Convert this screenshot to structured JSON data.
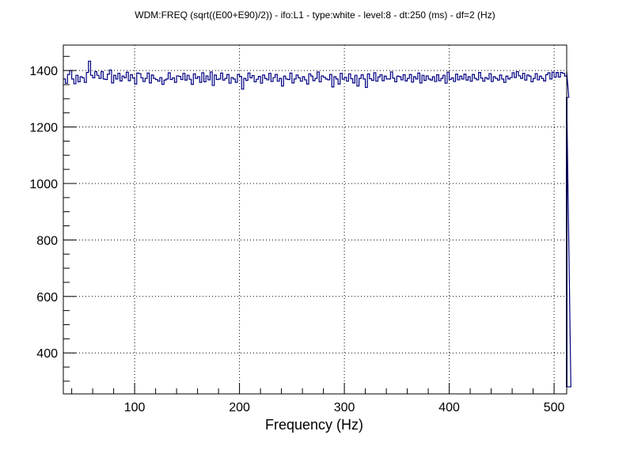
{
  "chart_data": {
    "type": "line",
    "title": "WDM:FREQ (sqrt((E00+E90)/2)) - ifo:L1 - type:white - level:8 - dt:250 (ms) - df=2 (Hz)",
    "xlabel": "Frequency (Hz)",
    "ylabel": "",
    "xlim": [
      32,
      512
    ],
    "ylim": [
      255,
      1490
    ],
    "x_ticks": [
      100,
      200,
      300,
      400,
      500
    ],
    "y_ticks": [
      400,
      600,
      800,
      1000,
      1200,
      1400
    ],
    "grid": true,
    "step": 2,
    "x_start": 32,
    "series": [
      {
        "style": "histogram-step",
        "color": "#000080",
        "values": [
          1370,
          1355,
          1386,
          1400,
          1370,
          1353,
          1383,
          1360,
          1378,
          1374,
          1358,
          1393,
          1433,
          1383,
          1374,
          1396,
          1383,
          1372,
          1396,
          1370,
          1368,
          1387,
          1402,
          1356,
          1383,
          1370,
          1390,
          1363,
          1380,
          1374,
          1394,
          1364,
          1385,
          1373,
          1352,
          1391,
          1389,
          1374,
          1361,
          1372,
          1391,
          1356,
          1384,
          1372,
          1368,
          1362,
          1375,
          1351,
          1366,
          1370,
          1392,
          1368,
          1374,
          1358,
          1381,
          1379,
          1368,
          1390,
          1366,
          1383,
          1369,
          1351,
          1388,
          1372,
          1378,
          1358,
          1392,
          1360,
          1381,
          1367,
          1395,
          1347,
          1384,
          1368,
          1370,
          1391,
          1366,
          1372,
          1386,
          1355,
          1375,
          1370,
          1358,
          1386,
          1379,
          1334,
          1372,
          1365,
          1391,
          1374,
          1382,
          1360,
          1369,
          1379,
          1355,
          1384,
          1372,
          1367,
          1390,
          1361,
          1375,
          1386,
          1362,
          1372,
          1345,
          1380,
          1370,
          1368,
          1391,
          1356,
          1370,
          1384,
          1374,
          1362,
          1378,
          1367,
          1352,
          1388,
          1380,
          1364,
          1372,
          1395,
          1360,
          1381,
          1376,
          1370,
          1367,
          1386,
          1342,
          1378,
          1370,
          1352,
          1390,
          1369,
          1376,
          1362,
          1388,
          1371,
          1356,
          1383,
          1345,
          1372,
          1385,
          1370,
          1340,
          1388,
          1371,
          1365,
          1392,
          1362,
          1377,
          1385,
          1364,
          1380,
          1370,
          1370,
          1395,
          1373,
          1360,
          1380,
          1378,
          1367,
          1385,
          1363,
          1372,
          1386,
          1359,
          1378,
          1370,
          1391,
          1356,
          1383,
          1365,
          1381,
          1370,
          1366,
          1378,
          1361,
          1385,
          1364,
          1372,
          1383,
          1355,
          1394,
          1368,
          1374,
          1361,
          1387,
          1367,
          1380,
          1370,
          1387,
          1366,
          1378,
          1362,
          1386,
          1372,
          1367,
          1393,
          1373,
          1362,
          1375,
          1370,
          1389,
          1361,
          1378,
          1372,
          1366,
          1384,
          1370,
          1358,
          1380,
          1370,
          1375,
          1392,
          1375,
          1396,
          1381,
          1372,
          1390,
          1366,
          1384,
          1380,
          1360,
          1372,
          1389,
          1367,
          1380,
          1372,
          1363,
          1385,
          1392,
          1370,
          1394,
          1376,
          1393,
          1377,
          1393,
          1390,
          1380,
          1396,
          1305,
          280
        ]
      }
    ]
  }
}
